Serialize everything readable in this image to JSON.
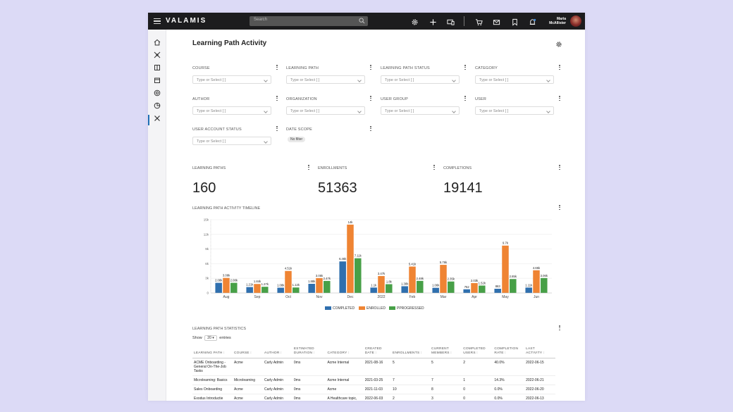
{
  "topbar": {
    "brand": "VALAMIS",
    "search_placeholder": "Search",
    "user_first": "Maria",
    "user_last": "McAllister",
    "icons": [
      "settings-icon",
      "plus-icon",
      "devices-icon",
      "cart-icon",
      "mail-icon",
      "bookmark-icon",
      "notification-icon"
    ]
  },
  "sidebar": {
    "items": [
      "home-icon",
      "network-icon",
      "book-icon",
      "calendar-icon",
      "target-icon",
      "reports-icon",
      "tools-icon"
    ],
    "active": "reports-icon"
  },
  "page": {
    "title": "Learning Path Activity"
  },
  "filters": [
    {
      "label": "COURSE",
      "placeholder": "Type or Select [ ]"
    },
    {
      "label": "LEARNING PATH",
      "placeholder": "Type or Select [ ]"
    },
    {
      "label": "LEARNING PATH STATUS",
      "placeholder": "Type or Select [ ]"
    },
    {
      "label": "CATEGORY",
      "placeholder": "Type or Select [ ]"
    },
    {
      "label": "AUTHOR",
      "placeholder": "Type or Select [ ]"
    },
    {
      "label": "ORGANIZATION",
      "placeholder": "Type or Select [ ]"
    },
    {
      "label": "USER GROUP",
      "placeholder": "Type or Select [ ]"
    },
    {
      "label": "USER",
      "placeholder": "Type or Select [ ]"
    },
    {
      "label": "USER ACCOUNT STATUS",
      "placeholder": "Type or Select [ ]"
    }
  ],
  "date_scope": {
    "label": "DATE SCOPE",
    "chip": "No filter"
  },
  "metrics": [
    {
      "label": "LEARNING PATHS",
      "value": "160"
    },
    {
      "label": "ENROLLMENTS",
      "value": "51363"
    },
    {
      "label": "COMPLETIONS",
      "value": "19141"
    }
  ],
  "timeline_title": "LEARNING PATH ACTIVITY TIMELINE",
  "chart_data": {
    "type": "bar",
    "categories": [
      "Aug",
      "Sep",
      "Oct",
      "Nov",
      "Dec",
      "2022",
      "Feb",
      "Mar",
      "Apr",
      "May",
      "Jun"
    ],
    "ylim": [
      0,
      15000
    ],
    "yticks": [
      0,
      3000,
      6000,
      9000,
      12000,
      15000
    ],
    "ytick_labels": [
      "0",
      "3k",
      "6k",
      "9k",
      "12k",
      "15k"
    ],
    "grid": true,
    "legend_position": "bottom-center",
    "series": [
      {
        "name": "COMPLETED",
        "color": "#2f6fae",
        "values": [
          2080,
          1210,
          1080,
          1880,
          6460,
          1110,
          1380,
          1060,
          752,
          863,
          1110
        ],
        "labels": [
          "2.08k",
          "1.21k",
          "1.08k",
          "1.88k",
          "6.46k",
          "1.1k",
          "1.38k",
          "1.06k",
          "752",
          "863",
          "1.11k"
        ]
      },
      {
        "name": "ENROLLED",
        "color": "#ef8433",
        "values": [
          3080,
          1840,
          4510,
          3050,
          14000,
          3470,
          5410,
          5760,
          2030,
          9700,
          4650
        ],
        "labels": [
          "3.08k",
          "1.84k",
          "4.51k",
          "3.05k",
          "14k",
          "3.47k",
          "5.41k",
          "5.76k",
          "2.03k",
          "9.7k",
          "4.65k"
        ]
      },
      {
        "name": "PPROGRESSED",
        "color": "#47a047",
        "values": [
          2080,
          1270,
          1120,
          2470,
          7110,
          1800,
          2480,
          2350,
          1520,
          2850,
          3060
        ],
        "labels": [
          "2.08k",
          "1.27k",
          "1.12k",
          "2.47k",
          "7.11k",
          "1.8k",
          "2.48k",
          "2.35k",
          "1.52k",
          "2.85k",
          "3.06k"
        ]
      }
    ]
  },
  "stats": {
    "title": "LEARNING PATH STATISTICS",
    "show_prefix": "Show",
    "page_size": "20",
    "show_suffix": "entries",
    "columns": [
      "LEARNING PATH",
      "COURSE",
      "AUTHOR",
      "ESTIMATED DURATION",
      "CATEGORY",
      "CREATED DATE",
      "ENROLLMENTS",
      "CURRENT MEMBERS",
      "COMPLETED USERS",
      "COMPLETION RATE",
      "LAST ACTIVITY"
    ],
    "rows": [
      [
        "ACME Onboarding - General On-The-Job Tasks",
        "Acme",
        "Carly Admin",
        "0ms",
        "Acme Internal",
        "2021-08-16",
        "5",
        "5",
        "2",
        "40.0%",
        "2022-06-15"
      ],
      [
        "Microlearning: Basics",
        "Microlearning",
        "Carly Admin",
        "0ms",
        "Acme Internal",
        "2021-03-25",
        "7",
        "7",
        "1",
        "14.3%",
        "2022-06-21"
      ],
      [
        "Sales Onboarding",
        "Acme",
        "Carly Admin",
        "0ms",
        "Acme",
        "2021-11-03",
        "10",
        "8",
        "0",
        "0.0%",
        "2022-06-20"
      ],
      [
        "Exodus Introductie",
        "Acme",
        "Carly Admin",
        "0ms",
        "A Healthcare topic, Taxation",
        "2022-06-03",
        "2",
        "3",
        "0",
        "0.0%",
        "2022-06-13"
      ]
    ]
  }
}
